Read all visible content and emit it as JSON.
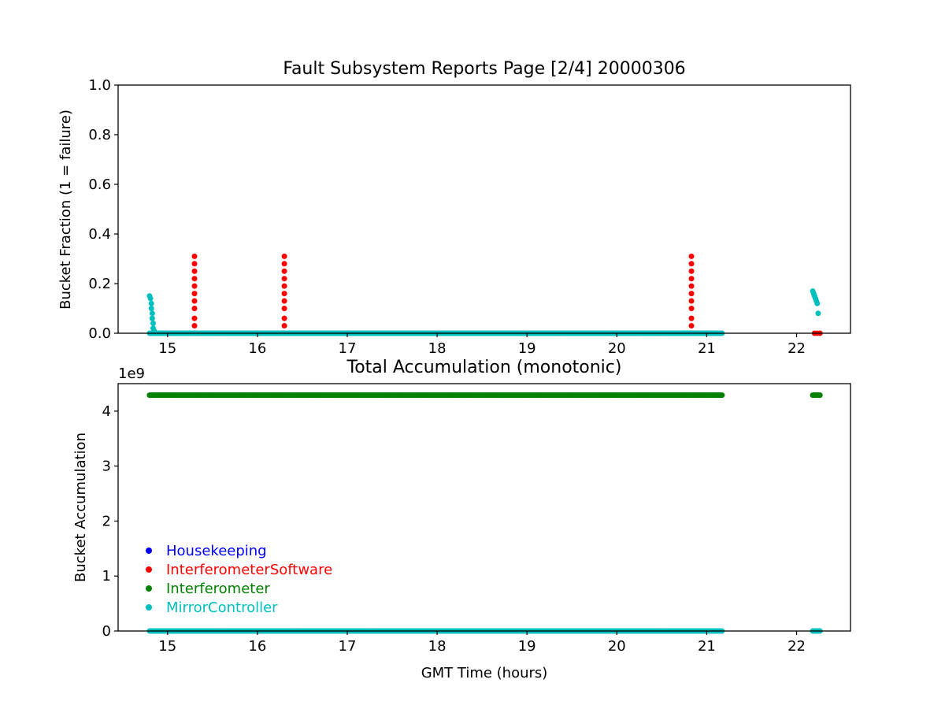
{
  "chart_data": [
    {
      "type": "scatter",
      "title": "Fault Subsystem Reports Page [2/4] 20000306",
      "xlabel": "",
      "ylabel": "Bucket Fraction (1 = failure)",
      "xlim": [
        14.45,
        22.6
      ],
      "ylim": [
        0,
        1.0
      ],
      "x_ticks": [
        15,
        16,
        17,
        18,
        19,
        20,
        21,
        22
      ],
      "y_ticks": [
        0.0,
        0.2,
        0.4,
        0.6,
        0.8,
        1.0
      ],
      "y_tick_labels": [
        "0.0",
        "0.2",
        "0.4",
        "0.6",
        "0.8",
        "1.0"
      ],
      "grid": false,
      "series": [
        {
          "name": "InterferometerSoftware",
          "color": "#ff0000",
          "points": [
            [
              15.3,
              0.0
            ],
            [
              15.3,
              0.03
            ],
            [
              15.3,
              0.06
            ],
            [
              15.3,
              0.1
            ],
            [
              15.3,
              0.13
            ],
            [
              15.3,
              0.16
            ],
            [
              15.3,
              0.19
            ],
            [
              15.3,
              0.22
            ],
            [
              15.3,
              0.25
            ],
            [
              15.3,
              0.28
            ],
            [
              15.3,
              0.31
            ],
            [
              16.3,
              0.0
            ],
            [
              16.3,
              0.03
            ],
            [
              16.3,
              0.06
            ],
            [
              16.3,
              0.1
            ],
            [
              16.3,
              0.13
            ],
            [
              16.3,
              0.16
            ],
            [
              16.3,
              0.19
            ],
            [
              16.3,
              0.22
            ],
            [
              16.3,
              0.25
            ],
            [
              16.3,
              0.28
            ],
            [
              16.3,
              0.31
            ],
            [
              20.83,
              0.0
            ],
            [
              20.83,
              0.03
            ],
            [
              20.83,
              0.06
            ],
            [
              20.83,
              0.1
            ],
            [
              20.83,
              0.13
            ],
            [
              20.83,
              0.16
            ],
            [
              20.83,
              0.19
            ],
            [
              20.83,
              0.22
            ],
            [
              20.83,
              0.25
            ],
            [
              20.83,
              0.28
            ],
            [
              20.83,
              0.31
            ],
            [
              22.2,
              0.0
            ],
            [
              22.23,
              0.0
            ],
            [
              22.26,
              0.0
            ]
          ]
        },
        {
          "name": "MirrorController",
          "color": "#00bfbf",
          "points": [
            [
              14.8,
              0.15
            ],
            [
              14.81,
              0.14
            ],
            [
              14.82,
              0.12
            ],
            [
              14.82,
              0.1
            ],
            [
              14.83,
              0.08
            ],
            [
              14.83,
              0.06
            ],
            [
              14.84,
              0.04
            ],
            [
              14.84,
              0.02
            ],
            [
              14.85,
              0.01
            ],
            [
              22.18,
              0.17
            ],
            [
              22.19,
              0.16
            ],
            [
              22.2,
              0.15
            ],
            [
              22.21,
              0.14
            ],
            [
              22.22,
              0.13
            ],
            [
              22.23,
              0.12
            ],
            [
              22.24,
              0.08
            ]
          ],
          "baseline_runs": [
            {
              "y": 0.0,
              "x_start": 14.8,
              "x_end": 21.17,
              "step": 0.01
            }
          ]
        }
      ]
    },
    {
      "type": "scatter",
      "title": "Total Accumulation (monotonic)",
      "xlabel": "GMT Time (hours)",
      "ylabel": "Bucket Accumulation",
      "axis_offset_label": "1e9",
      "xlim": [
        14.45,
        22.6
      ],
      "ylim": [
        0,
        4.5
      ],
      "x_ticks": [
        15,
        16,
        17,
        18,
        19,
        20,
        21,
        22
      ],
      "y_ticks": [
        0,
        1,
        2,
        3,
        4
      ],
      "y_tick_labels": [
        "0",
        "1",
        "2",
        "3",
        "4"
      ],
      "grid": false,
      "legend": {
        "placement": "lower-left",
        "entries": [
          {
            "name": "Housekeeping",
            "color": "#0000ff"
          },
          {
            "name": "InterferometerSoftware",
            "color": "#ff0000"
          },
          {
            "name": "Interferometer",
            "color": "#008000"
          },
          {
            "name": "MirrorController",
            "color": "#00bfbf"
          }
        ]
      },
      "series": [
        {
          "name": "Interferometer",
          "color": "#008000",
          "baseline_runs": [
            {
              "y": 4.29,
              "x_start": 14.8,
              "x_end": 21.17,
              "step": 0.01
            },
            {
              "y": 4.29,
              "x_start": 22.18,
              "x_end": 22.26,
              "step": 0.01
            }
          ]
        },
        {
          "name": "MirrorController",
          "color": "#00bfbf",
          "baseline_runs": [
            {
              "y": 0.0,
              "x_start": 14.8,
              "x_end": 21.17,
              "step": 0.01
            },
            {
              "y": 0.0,
              "x_start": 22.18,
              "x_end": 22.26,
              "step": 0.01
            }
          ]
        }
      ]
    }
  ]
}
